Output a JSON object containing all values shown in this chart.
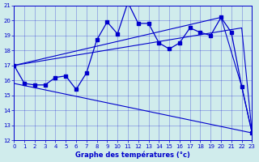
{
  "xlabel": "Graphe des températures (°c)",
  "xlim": [
    0,
    23
  ],
  "ylim": [
    12,
    21
  ],
  "yticks": [
    12,
    13,
    14,
    15,
    16,
    17,
    18,
    19,
    20,
    21
  ],
  "xticks": [
    0,
    1,
    2,
    3,
    4,
    5,
    6,
    7,
    8,
    9,
    10,
    11,
    12,
    13,
    14,
    15,
    16,
    17,
    18,
    19,
    20,
    21,
    22,
    23
  ],
  "line_color": "#0000cc",
  "bg_color": "#d0ecec",
  "main_x": [
    0,
    1,
    2,
    3,
    4,
    5,
    6,
    7,
    8,
    9,
    10,
    11,
    12,
    13,
    14,
    15,
    16,
    17,
    18,
    19,
    20,
    21,
    22,
    23
  ],
  "main_y": [
    17.0,
    15.8,
    15.7,
    15.7,
    16.2,
    16.3,
    15.4,
    16.5,
    18.7,
    19.9,
    19.1,
    21.2,
    19.8,
    19.8,
    18.5,
    18.1,
    18.5,
    19.5,
    19.2,
    19.0,
    20.2,
    19.2,
    15.6,
    12.5
  ],
  "upper_line_x": [
    0,
    20,
    22,
    23
  ],
  "upper_line_y": [
    17.0,
    20.2,
    15.6,
    12.5
  ],
  "lower_line_x": [
    0,
    23
  ],
  "lower_line_y": [
    15.8,
    12.5
  ],
  "mid_line_x": [
    0,
    22,
    23
  ],
  "mid_line_y": [
    17.0,
    19.5,
    12.5
  ]
}
